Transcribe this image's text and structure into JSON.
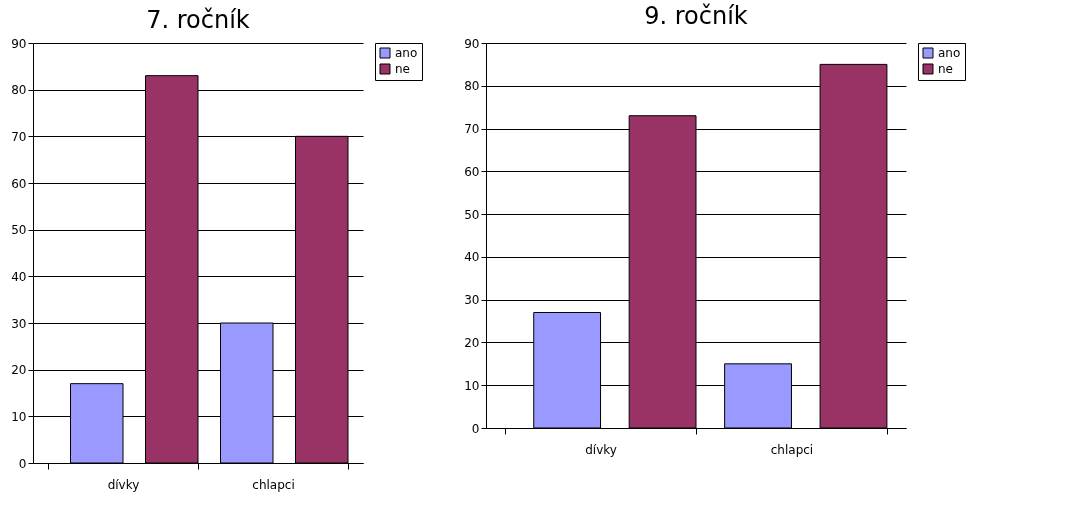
{
  "chart_data": [
    {
      "type": "bar",
      "title": "7. ročník",
      "categories": [
        "dívky",
        "chlapci"
      ],
      "series": [
        {
          "name": "ano",
          "color": "#9999ff",
          "values": [
            17,
            30
          ]
        },
        {
          "name": "ne",
          "color": "#993366",
          "values": [
            83,
            70
          ]
        }
      ],
      "ylim": [
        0,
        90
      ],
      "yticks": [
        0,
        10,
        20,
        30,
        40,
        50,
        60,
        70,
        80,
        90
      ],
      "grid": "y",
      "legend": "right"
    },
    {
      "type": "bar",
      "title": "9. ročník",
      "categories": [
        "dívky",
        "chlapci"
      ],
      "series": [
        {
          "name": "ano",
          "color": "#9999ff",
          "values": [
            27,
            15
          ]
        },
        {
          "name": "ne",
          "color": "#993366",
          "values": [
            73,
            85
          ]
        }
      ],
      "ylim": [
        0,
        90
      ],
      "yticks": [
        0,
        10,
        20,
        30,
        40,
        50,
        60,
        70,
        80,
        90
      ],
      "grid": "y",
      "legend": "right"
    }
  ]
}
